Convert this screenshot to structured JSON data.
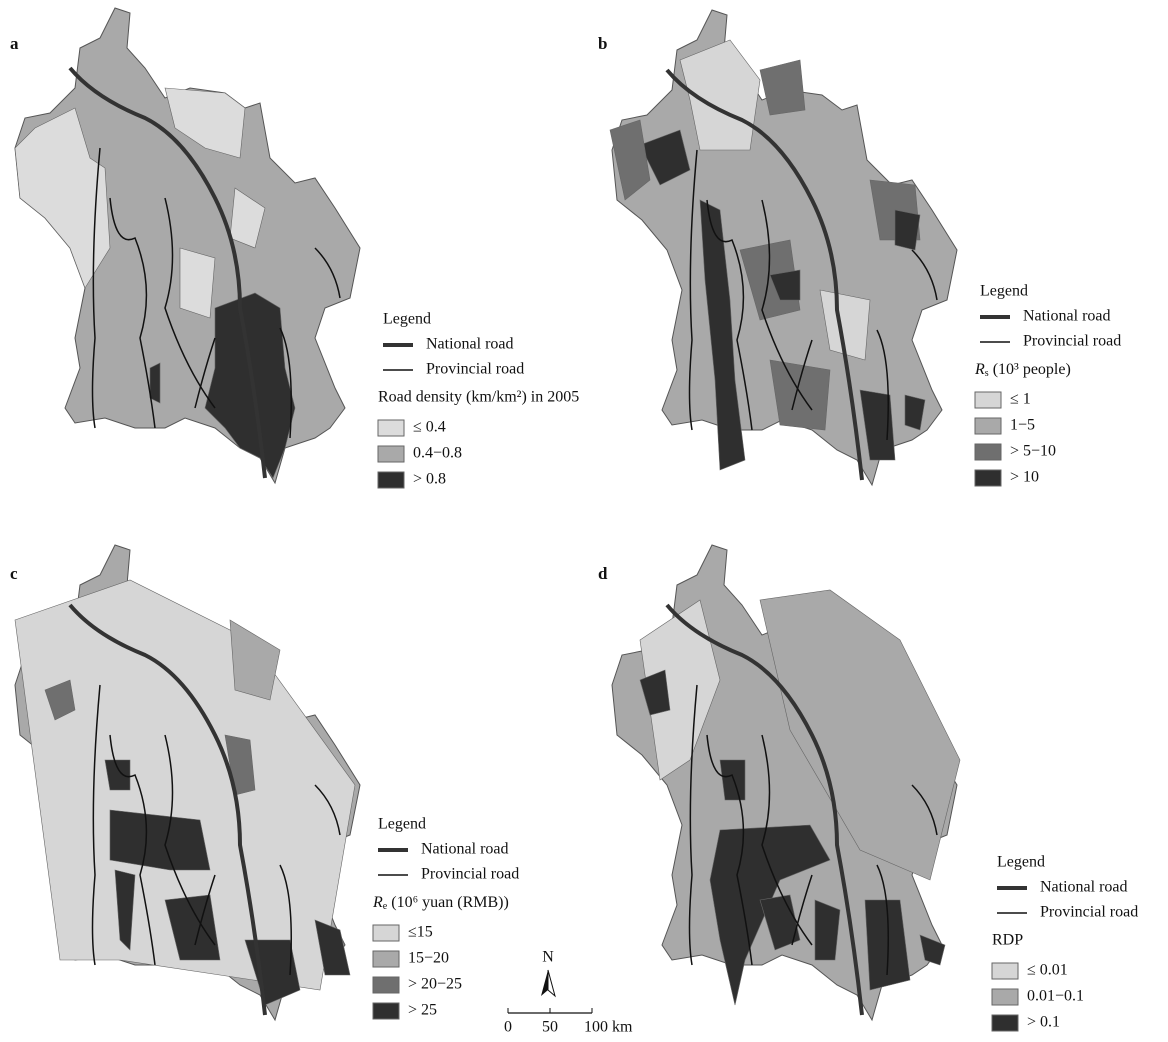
{
  "panels": [
    {
      "label": "a",
      "legend": {
        "title": "Legend",
        "roads": [
          "National road",
          "Provincial road"
        ],
        "variable": "Road density (km/km²) in 2005",
        "classes": [
          "≤ 0.4",
          "0.4−0.8",
          "> 0.8"
        ],
        "class_colors": [
          "#dcdcdc",
          "#a9a9a9",
          "#2f2f2f"
        ]
      }
    },
    {
      "label": "b",
      "legend": {
        "title": "Legend",
        "roads": [
          "National road",
          "Provincial road"
        ],
        "variable": {
          "symbol": "R",
          "sub": "s",
          "rest": "(10³ people)"
        },
        "classes": [
          "≤ 1",
          "1−5",
          "> 5−10",
          "> 10"
        ],
        "class_colors": [
          "#d6d6d6",
          "#a9a9a9",
          "#6f6f6f",
          "#2f2f2f"
        ]
      }
    },
    {
      "label": "c",
      "legend": {
        "title": "Legend",
        "roads": [
          "National road",
          "Provincial road"
        ],
        "variable": {
          "symbol": "R",
          "sub": "e",
          "rest": "(10⁶ yuan (RMB))"
        },
        "classes": [
          "≤15",
          "15−20",
          "> 20−25",
          "> 25"
        ],
        "class_colors": [
          "#d6d6d6",
          "#a9a9a9",
          "#6f6f6f",
          "#2f2f2f"
        ]
      }
    },
    {
      "label": "d",
      "legend": {
        "title": "Legend",
        "roads": [
          "National road",
          "Provincial road"
        ],
        "variable": "RDP",
        "classes": [
          "≤ 0.01",
          "0.01−0.1",
          "> 0.1"
        ],
        "class_colors": [
          "#d6d6d6",
          "#a9a9a9",
          "#2f2f2f"
        ]
      }
    }
  ],
  "north": "N",
  "scale": [
    "0",
    "50",
    "100 km"
  ]
}
